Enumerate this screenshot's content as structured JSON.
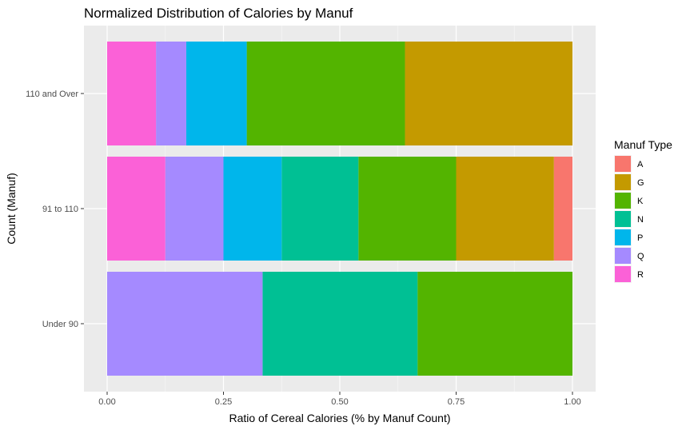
{
  "chart_data": {
    "type": "bar",
    "orientation": "horizontal",
    "stacked": "normalized",
    "title": "Normalized Distribution of Calories by Manuf",
    "xlabel": "Ratio of Cereal Calories (% by Manuf Count)",
    "ylabel": "Count (Manuf)",
    "xlim": [
      0,
      1
    ],
    "x_ticks": [
      "0.00",
      "0.25",
      "0.50",
      "0.75",
      "1.00"
    ],
    "grid": true,
    "legend_title": "Manuf Type",
    "legend_position": "right",
    "categories": [
      "Under 90",
      "91 to 110",
      "110 and Over"
    ],
    "series": [
      {
        "name": "A",
        "color": "#F8766D",
        "values": [
          0,
          0.04,
          0
        ]
      },
      {
        "name": "G",
        "color": "#C49A00",
        "values": [
          0,
          0.21,
          0.36
        ]
      },
      {
        "name": "K",
        "color": "#53B400",
        "values": [
          0.333,
          0.21,
          0.34
        ]
      },
      {
        "name": "N",
        "color": "#00C094",
        "values": [
          0.333,
          0.165,
          0
        ]
      },
      {
        "name": "P",
        "color": "#00B6EB",
        "values": [
          0,
          0.125,
          0.13
        ]
      },
      {
        "name": "Q",
        "color": "#A58AFF",
        "values": [
          0.334,
          0.125,
          0.065
        ]
      },
      {
        "name": "R",
        "color": "#FB61D7",
        "values": [
          0,
          0.125,
          0.105
        ]
      }
    ]
  }
}
